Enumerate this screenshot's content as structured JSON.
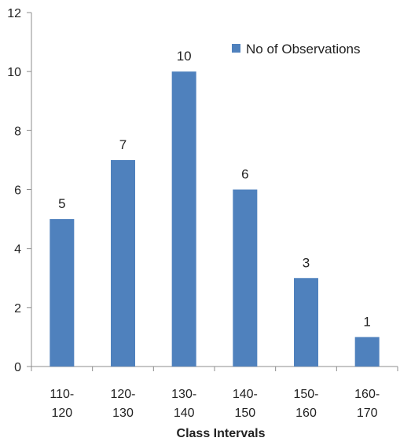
{
  "chart_data": {
    "type": "bar",
    "categories": [
      [
        "110-",
        "120"
      ],
      [
        "120-",
        "130"
      ],
      [
        "130-",
        "140"
      ],
      [
        "140-",
        "150"
      ],
      [
        "150-",
        "160"
      ],
      [
        "160-",
        "170"
      ]
    ],
    "series": [
      {
        "name": "No of Observations",
        "values": [
          5,
          7,
          10,
          6,
          3,
          1
        ],
        "color": "#4f81bd"
      }
    ],
    "title": "",
    "xlabel": "Class Intervals",
    "ylabel": "",
    "ylim": [
      0,
      12
    ],
    "yticks": [
      "0",
      "2",
      "4",
      "6",
      "8",
      "10",
      "12"
    ],
    "data_labels": [
      "5",
      "7",
      "10",
      "6",
      "3",
      "1"
    ],
    "grid": false,
    "legend_position": "top-right"
  }
}
